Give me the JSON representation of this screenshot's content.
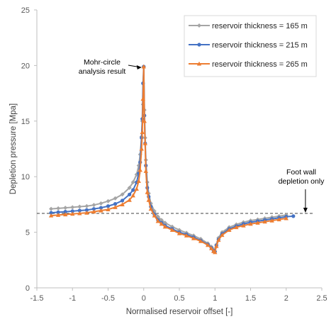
{
  "chart_data": {
    "type": "line",
    "xlabel": "Normalised reservoir offset [-]",
    "ylabel": "Depletion pressure [Mpa]",
    "xlim": [
      -1.5,
      2.5
    ],
    "ylim": [
      0,
      25
    ],
    "x_ticks": [
      "-1.5",
      "-1",
      "-0.5",
      "0",
      "0.5",
      "1",
      "1.5",
      "2",
      "2.5"
    ],
    "y_ticks": [
      "0",
      "5",
      "10",
      "15",
      "20",
      "25"
    ],
    "grid": false,
    "legend_position": "top-right",
    "colors": {
      "axis": "#bfbfbf",
      "reference_line": "#404040"
    },
    "reference_line": {
      "y": 6.7,
      "style": "dashed"
    },
    "annotations": [
      {
        "lines": [
          "Mohr-circle",
          "analysis result"
        ],
        "x": 0.0,
        "y": 19.9
      },
      {
        "lines": [
          "Foot wall",
          "depletion only"
        ],
        "x": 2.27,
        "y": 6.7
      }
    ],
    "series": [
      {
        "name": "reservoir thickness = 165 m",
        "color": "#a5a5a5",
        "marker": "diamond",
        "x": [
          -1.3,
          -1.2,
          -1.1,
          -1.0,
          -0.9,
          -0.8,
          -0.7,
          -0.6,
          -0.5,
          -0.4,
          -0.3,
          -0.2,
          -0.15,
          -0.1,
          -0.07,
          -0.05,
          -0.03,
          -0.02,
          -0.01,
          0.0,
          0.01,
          0.02,
          0.03,
          0.05,
          0.07,
          0.1,
          0.15,
          0.2,
          0.25,
          0.3,
          0.4,
          0.5,
          0.6,
          0.7,
          0.8,
          0.9,
          0.95,
          0.98,
          1.0,
          1.02,
          1.05,
          1.1,
          1.2,
          1.3,
          1.4,
          1.5,
          1.6,
          1.7,
          1.8,
          1.9,
          2.0
        ],
        "y": [
          7.1,
          7.15,
          7.2,
          7.25,
          7.3,
          7.35,
          7.45,
          7.6,
          7.8,
          8.05,
          8.4,
          9.0,
          9.5,
          10.2,
          11.0,
          12.0,
          13.6,
          15.0,
          16.5,
          19.9,
          16.0,
          13.5,
          11.5,
          9.5,
          8.5,
          7.6,
          6.9,
          6.4,
          6.1,
          5.85,
          5.5,
          5.2,
          4.95,
          4.7,
          4.4,
          4.0,
          3.7,
          3.45,
          3.3,
          3.9,
          4.5,
          5.0,
          5.45,
          5.7,
          5.9,
          6.05,
          6.15,
          6.25,
          6.35,
          6.45,
          6.55
        ]
      },
      {
        "name": "reservoir thickness = 215 m",
        "color": "#4472c4",
        "marker": "circle",
        "x": [
          -1.3,
          -1.2,
          -1.1,
          -1.0,
          -0.9,
          -0.8,
          -0.7,
          -0.6,
          -0.5,
          -0.4,
          -0.3,
          -0.2,
          -0.15,
          -0.1,
          -0.07,
          -0.05,
          -0.03,
          -0.02,
          -0.01,
          0.0,
          0.01,
          0.02,
          0.03,
          0.05,
          0.07,
          0.1,
          0.15,
          0.2,
          0.25,
          0.3,
          0.4,
          0.5,
          0.6,
          0.7,
          0.8,
          0.9,
          0.95,
          0.98,
          1.0,
          1.02,
          1.05,
          1.1,
          1.2,
          1.3,
          1.4,
          1.5,
          1.6,
          1.7,
          1.8,
          1.9,
          2.0,
          2.1
        ],
        "y": [
          6.75,
          6.8,
          6.85,
          6.9,
          6.95,
          7.0,
          7.1,
          7.2,
          7.35,
          7.55,
          7.85,
          8.4,
          8.8,
          9.5,
          10.3,
          11.3,
          13.5,
          15.2,
          18.4,
          19.9,
          15.5,
          13.0,
          11.0,
          9.0,
          8.2,
          7.3,
          6.6,
          6.1,
          5.85,
          5.6,
          5.3,
          5.0,
          4.8,
          4.55,
          4.25,
          3.9,
          3.6,
          3.35,
          3.25,
          3.8,
          4.35,
          4.85,
          5.3,
          5.55,
          5.75,
          5.9,
          6.0,
          6.1,
          6.2,
          6.3,
          6.4,
          6.45
        ]
      },
      {
        "name": "reservoir thickness = 265 m",
        "color": "#ed7d31",
        "marker": "triangle",
        "x": [
          -1.3,
          -1.2,
          -1.1,
          -1.0,
          -0.9,
          -0.8,
          -0.7,
          -0.6,
          -0.5,
          -0.4,
          -0.3,
          -0.2,
          -0.15,
          -0.1,
          -0.07,
          -0.05,
          -0.03,
          -0.02,
          -0.01,
          0.0,
          0.01,
          0.02,
          0.03,
          0.05,
          0.07,
          0.1,
          0.15,
          0.2,
          0.25,
          0.3,
          0.4,
          0.5,
          0.6,
          0.7,
          0.8,
          0.9,
          0.95,
          0.98,
          1.0,
          1.02,
          1.05,
          1.1,
          1.2,
          1.3,
          1.4,
          1.5,
          1.6,
          1.7,
          1.8,
          1.9,
          2.0
        ],
        "y": [
          6.5,
          6.55,
          6.6,
          6.65,
          6.7,
          6.75,
          6.85,
          6.95,
          7.05,
          7.25,
          7.5,
          7.9,
          8.3,
          8.9,
          9.6,
          10.6,
          12.5,
          14.0,
          17.0,
          19.9,
          15.0,
          13.0,
          10.5,
          8.6,
          7.9,
          7.1,
          6.5,
          6.0,
          5.75,
          5.5,
          5.2,
          4.9,
          4.7,
          4.45,
          4.2,
          3.85,
          3.55,
          3.3,
          3.2,
          3.75,
          4.3,
          4.75,
          5.2,
          5.45,
          5.6,
          5.75,
          5.85,
          5.95,
          6.05,
          6.15,
          6.25
        ]
      }
    ]
  }
}
